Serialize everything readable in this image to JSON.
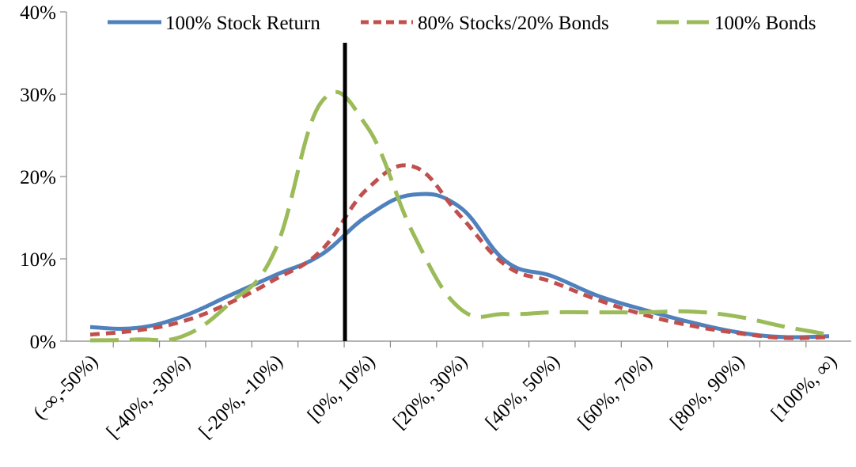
{
  "chart_data": {
    "type": "line",
    "categories": [
      "(-∞,-50%)",
      "[-50%, -40%)",
      "[-40%, -30%)",
      "[-30%, -20%)",
      "[-20%, -10%)",
      "[-10%, 0%)",
      "[0%, 10%)",
      "[10%, 20%)",
      "[20%, 30%)",
      "[30%, 40%)",
      "[40%, 50%)",
      "[50%, 60%)",
      "[60%, 70%)",
      "[70%, 80%)",
      "[80%, 90%)",
      "[90%, 100%)",
      "[100%, ∞)"
    ],
    "category_labels_shown": [
      "(-∞,-50%)",
      "[-40%, -30%)",
      "[-20%, -10%)",
      "[0%, 10%)",
      "[20%, 30%)",
      "[40%, 50%)",
      "[60%, 70%)",
      "[80%, 90%)",
      "[100%, ∞)"
    ],
    "series": [
      {
        "name": "100% Stock Return",
        "color": "#4F81BD",
        "dash": "solid",
        "values": [
          1.7,
          1.6,
          3.0,
          5.5,
          8.0,
          10.5,
          15.2,
          17.8,
          16.3,
          9.7,
          7.9,
          5.5,
          3.8,
          2.3,
          1.1,
          0.5,
          0.6
        ]
      },
      {
        "name": "80% Stocks/20% Bonds",
        "color": "#C0504D",
        "dash": "short-dash",
        "values": [
          0.8,
          1.3,
          2.4,
          4.6,
          7.5,
          11.0,
          18.5,
          21.2,
          15.3,
          9.2,
          7.2,
          5.0,
          3.2,
          1.9,
          1.0,
          0.4,
          0.5
        ]
      },
      {
        "name": "100% Bonds",
        "color": "#9BBB59",
        "dash": "long-dash",
        "values": [
          0.1,
          0.2,
          0.6,
          4.5,
          11.0,
          29.0,
          26.0,
          13.0,
          4.0,
          3.3,
          3.5,
          3.5,
          3.5,
          3.6,
          3.0,
          1.8,
          0.8
        ]
      }
    ],
    "marker_line_at": "[0%, 10%)",
    "y_tick_labels": [
      "0%",
      "10%",
      "20%",
      "30%",
      "40%"
    ],
    "y_ticks": [
      0,
      10,
      20,
      30,
      40
    ],
    "ylim": [
      0,
      40
    ],
    "title": "",
    "xlabel": "",
    "ylabel": "",
    "grid": false,
    "legend_position": "top"
  }
}
